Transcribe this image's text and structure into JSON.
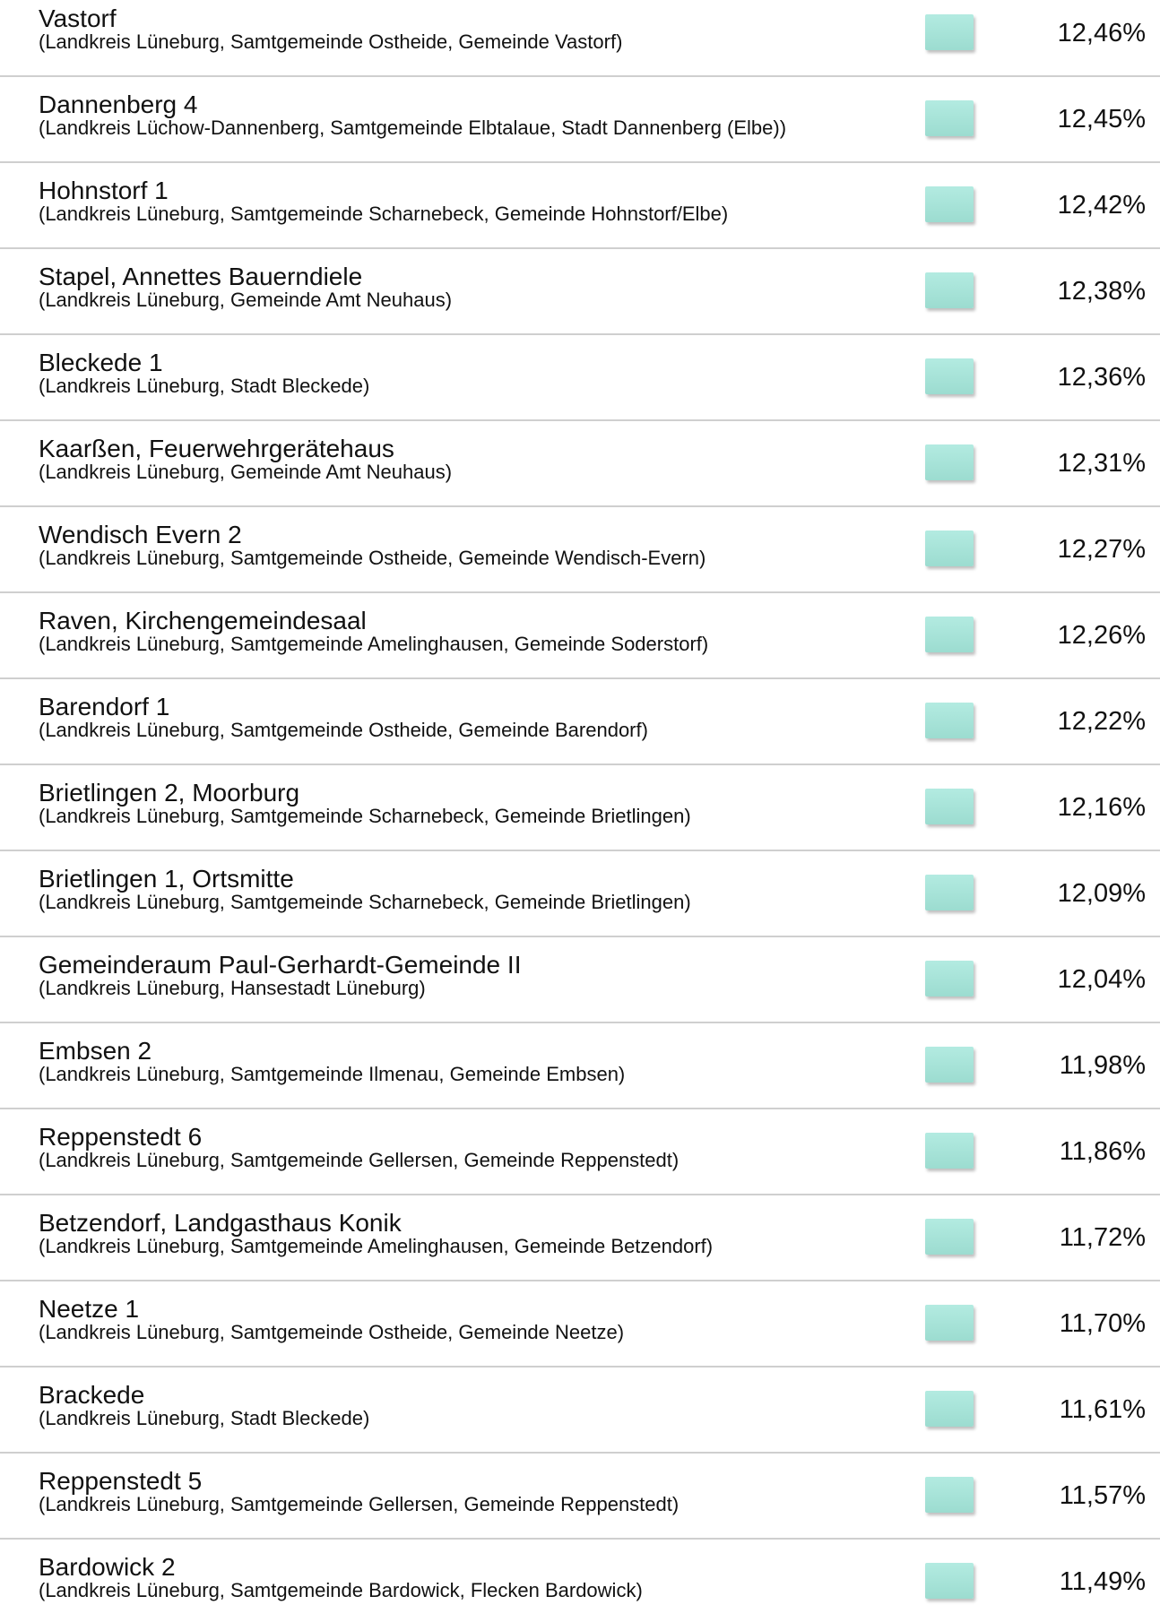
{
  "rows": [
    {
      "name": "Vastorf",
      "detail": "(Landkreis Lüneburg, Samtgemeinde Ostheide, Gemeinde Vastorf)",
      "value": "12,46%"
    },
    {
      "name": "Dannenberg 4",
      "detail": "(Landkreis Lüchow-Dannenberg, Samtgemeinde Elbtalaue, Stadt Dannenberg (Elbe))",
      "value": "12,45%"
    },
    {
      "name": "Hohnstorf 1",
      "detail": "(Landkreis Lüneburg, Samtgemeinde Scharnebeck, Gemeinde Hohnstorf/Elbe)",
      "value": "12,42%"
    },
    {
      "name": "Stapel, Annettes Bauerndiele",
      "detail": "(Landkreis Lüneburg, Gemeinde Amt Neuhaus)",
      "value": "12,38%"
    },
    {
      "name": "Bleckede 1",
      "detail": "(Landkreis Lüneburg, Stadt Bleckede)",
      "value": "12,36%"
    },
    {
      "name": "Kaarßen, Feuerwehrgerätehaus",
      "detail": "(Landkreis Lüneburg, Gemeinde Amt Neuhaus)",
      "value": "12,31%"
    },
    {
      "name": "Wendisch Evern 2",
      "detail": "(Landkreis Lüneburg, Samtgemeinde Ostheide, Gemeinde Wendisch-Evern)",
      "value": "12,27%"
    },
    {
      "name": "Raven, Kirchengemeindesaal",
      "detail": "(Landkreis Lüneburg, Samtgemeinde Amelinghausen, Gemeinde Soderstorf)",
      "value": "12,26%"
    },
    {
      "name": "Barendorf 1",
      "detail": "(Landkreis Lüneburg, Samtgemeinde Ostheide, Gemeinde Barendorf)",
      "value": "12,22%"
    },
    {
      "name": "Brietlingen 2, Moorburg",
      "detail": "(Landkreis Lüneburg, Samtgemeinde Scharnebeck, Gemeinde Brietlingen)",
      "value": "12,16%"
    },
    {
      "name": "Brietlingen 1, Ortsmitte",
      "detail": "(Landkreis Lüneburg, Samtgemeinde Scharnebeck, Gemeinde Brietlingen)",
      "value": "12,09%"
    },
    {
      "name": "Gemeinderaum Paul-Gerhardt-Gemeinde II",
      "detail": "(Landkreis Lüneburg, Hansestadt Lüneburg)",
      "value": "12,04%"
    },
    {
      "name": "Embsen 2",
      "detail": "(Landkreis Lüneburg, Samtgemeinde Ilmenau, Gemeinde Embsen)",
      "value": "11,98%"
    },
    {
      "name": "Reppenstedt 6",
      "detail": "(Landkreis Lüneburg, Samtgemeinde Gellersen, Gemeinde Reppenstedt)",
      "value": "11,86%"
    },
    {
      "name": "Betzendorf, Landgasthaus Konik",
      "detail": "(Landkreis Lüneburg, Samtgemeinde Amelinghausen, Gemeinde Betzendorf)",
      "value": "11,72%"
    },
    {
      "name": "Neetze 1",
      "detail": "(Landkreis Lüneburg, Samtgemeinde Ostheide, Gemeinde Neetze)",
      "value": "11,70%"
    },
    {
      "name": "Brackede",
      "detail": "(Landkreis Lüneburg, Stadt Bleckede)",
      "value": "11,61%"
    },
    {
      "name": "Reppenstedt 5",
      "detail": "(Landkreis Lüneburg, Samtgemeinde Gellersen, Gemeinde Reppenstedt)",
      "value": "11,57%"
    },
    {
      "name": "Bardowick 2",
      "detail": "(Landkreis Lüneburg, Samtgemeinde Bardowick, Flecken Bardowick)",
      "value": "11,49%"
    }
  ]
}
